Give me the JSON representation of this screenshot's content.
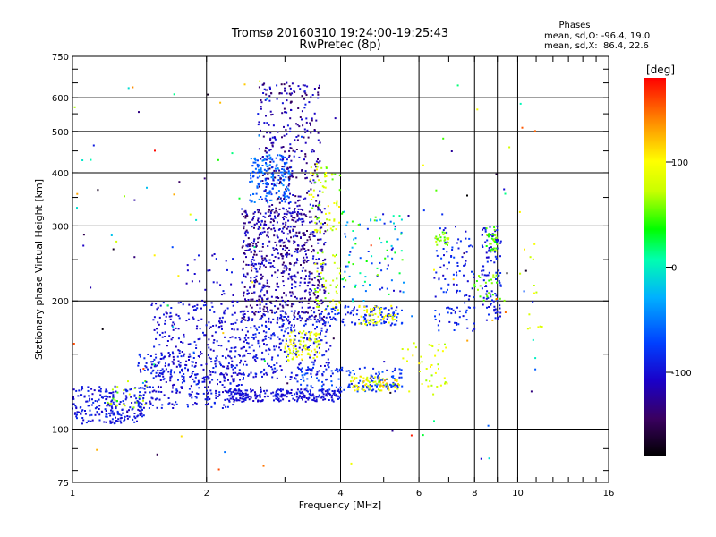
{
  "chart_data": {
    "type": "scatter",
    "title": "Tromsø 20160310 19:24:00-19:25:43",
    "subtitle": "RwPretec (8p)",
    "xlabel": "Frequency [MHz]",
    "ylabel": "Stationary phase Virtual Height [km]",
    "x_scale": "log",
    "y_scale": "log",
    "xlim": [
      1,
      16
    ],
    "ylim": [
      75,
      750
    ],
    "x_ticks": [
      {
        "value": 1,
        "label": "1"
      },
      {
        "value": 2,
        "label": "2"
      },
      {
        "value": 4,
        "label": "4"
      },
      {
        "value": 6,
        "label": "6"
      },
      {
        "value": 8,
        "label": "8"
      },
      {
        "value": 10,
        "label": "10"
      },
      {
        "value": 16,
        "label": "16"
      }
    ],
    "y_ticks": [
      {
        "value": 75,
        "label": "75"
      },
      {
        "value": 100,
        "label": "100"
      },
      {
        "value": 200,
        "label": "200"
      },
      {
        "value": 300,
        "label": "300"
      },
      {
        "value": 400,
        "label": "400"
      },
      {
        "value": 500,
        "label": "500"
      },
      {
        "value": 600,
        "label": "600"
      },
      {
        "value": 750,
        "label": "750"
      }
    ],
    "x_grid": [
      2,
      4,
      6,
      8,
      9,
      10
    ],
    "y_grid": [
      100,
      200,
      300,
      400,
      500,
      600
    ],
    "grid": true,
    "stats": {
      "title": "Phases",
      "line_o": "mean, sd,O: -96.4, 19.0",
      "line_x": "mean, sd,X:  86.4, 22.6"
    },
    "colorbar": {
      "unit": "deg",
      "range": [
        -180,
        180
      ],
      "ticks": [
        {
          "value": 100,
          "label": "100"
        },
        {
          "value": 0,
          "label": "0"
        },
        {
          "value": -100,
          "label": "-100"
        }
      ]
    },
    "clusters": [
      {
        "f": [
          1.0,
          1.45
        ],
        "h": [
          103,
          126
        ],
        "ph": [
          -110,
          -80
        ],
        "n": 220
      },
      {
        "f": [
          1.2,
          1.5
        ],
        "h": [
          112,
          130
        ],
        "ph": [
          40,
          90
        ],
        "n": 25
      },
      {
        "f": [
          1.4,
          2.4
        ],
        "h": [
          112,
          150
        ],
        "ph": [
          -115,
          -80
        ],
        "n": 300
      },
      {
        "f": [
          1.5,
          2.4
        ],
        "h": [
          130,
          200
        ],
        "ph": [
          -115,
          -85
        ],
        "n": 200
      },
      {
        "f": [
          1.8,
          2.3
        ],
        "h": [
          150,
          260
        ],
        "ph": [
          -120,
          -90
        ],
        "n": 60
      },
      {
        "f": [
          2.2,
          4.0
        ],
        "h": [
          116,
          124
        ],
        "ph": [
          -110,
          -90
        ],
        "n": 250
      },
      {
        "f": [
          3.2,
          5.5
        ],
        "h": [
          122,
          140
        ],
        "ph": [
          -100,
          -60
        ],
        "n": 150
      },
      {
        "f": [
          4.2,
          5.5
        ],
        "h": [
          123,
          133
        ],
        "ph": [
          60,
          130
        ],
        "n": 70
      },
      {
        "f": [
          2.4,
          3.8
        ],
        "h": [
          130,
          190
        ],
        "ph": [
          -110,
          -80
        ],
        "n": 300
      },
      {
        "f": [
          3.0,
          3.6
        ],
        "h": [
          145,
          170
        ],
        "ph": [
          70,
          110
        ],
        "n": 90
      },
      {
        "f": [
          2.5,
          3.1
        ],
        "h": [
          340,
          440
        ],
        "ph": [
          -80,
          -40
        ],
        "n": 180
      },
      {
        "f": [
          2.4,
          3.7
        ],
        "h": [
          180,
          330
        ],
        "ph": [
          -150,
          -90
        ],
        "n": 650
      },
      {
        "f": [
          2.6,
          3.6
        ],
        "h": [
          300,
          650
        ],
        "ph": [
          -150,
          -90
        ],
        "n": 320
      },
      {
        "f": [
          3.4,
          4.0
        ],
        "h": [
          290,
          420
        ],
        "ph": [
          50,
          110
        ],
        "n": 70
      },
      {
        "f": [
          3.5,
          4.0
        ],
        "h": [
          190,
          260
        ],
        "ph": [
          50,
          100
        ],
        "n": 50
      },
      {
        "f": [
          3.6,
          5.5
        ],
        "h": [
          175,
          195
        ],
        "ph": [
          -100,
          -70
        ],
        "n": 120
      },
      {
        "f": [
          4.4,
          5.3
        ],
        "h": [
          175,
          195
        ],
        "ph": [
          70,
          110
        ],
        "n": 50
      },
      {
        "f": [
          4.0,
          5.6
        ],
        "h": [
          200,
          330
        ],
        "ph": [
          -110,
          60
        ],
        "n": 90
      },
      {
        "f": [
          5.5,
          7.0
        ],
        "h": [
          120,
          160
        ],
        "ph": [
          60,
          110
        ],
        "n": 40
      },
      {
        "f": [
          6.5,
          8.0
        ],
        "h": [
          170,
          300
        ],
        "ph": [
          -110,
          -70
        ],
        "n": 110
      },
      {
        "f": [
          6.5,
          7.0
        ],
        "h": [
          270,
          290
        ],
        "ph": [
          40,
          80
        ],
        "n": 25
      },
      {
        "f": [
          8.3,
          9.2
        ],
        "h": [
          180,
          300
        ],
        "ph": [
          -110,
          -80
        ],
        "n": 110
      },
      {
        "f": [
          8.5,
          9.0
        ],
        "h": [
          260,
          300
        ],
        "ph": [
          30,
          70
        ],
        "n": 30
      },
      {
        "f": [
          7.8,
          9.5
        ],
        "h": [
          200,
          230
        ],
        "ph": [
          40,
          70
        ],
        "n": 25
      },
      {
        "f": [
          10.0,
          11.5
        ],
        "h": [
          170,
          330
        ],
        "ph": [
          60,
          110
        ],
        "n": 15
      },
      {
        "f": [
          1.0,
          11.0
        ],
        "h": [
          80,
          660
        ],
        "ph": [
          -180,
          180
        ],
        "n": 120
      }
    ]
  }
}
